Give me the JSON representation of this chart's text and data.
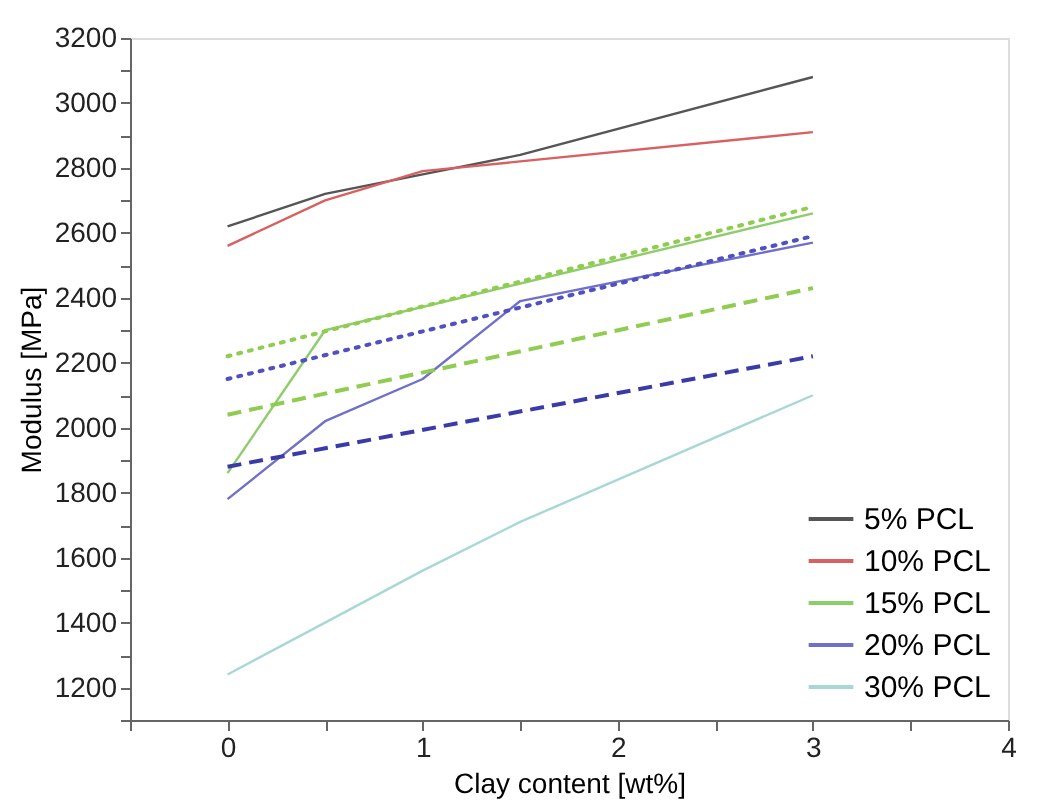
{
  "chart_data": {
    "type": "line",
    "xlabel": "Clay content [wt%]",
    "ylabel": "Modulus [MPa]",
    "xlim": [
      -0.5,
      4
    ],
    "ylim": [
      1100,
      3200
    ],
    "xticks": [
      {
        "value": -0.5,
        "label": null
      },
      0,
      {
        "value": 0.5,
        "label": null
      },
      1,
      {
        "value": 1.5,
        "label": null
      },
      2,
      {
        "value": 2.5,
        "label": null
      },
      3,
      {
        "value": 3.5,
        "label": null
      },
      4
    ],
    "yticks": [
      {
        "value": 1100,
        "label": null
      },
      1200,
      {
        "value": 1300,
        "label": null
      },
      1400,
      {
        "value": 1500,
        "label": null
      },
      1600,
      {
        "value": 1700,
        "label": null
      },
      1800,
      {
        "value": 1900,
        "label": null
      },
      2000,
      {
        "value": 2100,
        "label": null
      },
      2200,
      {
        "value": 2300,
        "label": null
      },
      2400,
      {
        "value": 2500,
        "label": null
      },
      2600,
      {
        "value": 2700,
        "label": null
      },
      2800,
      {
        "value": 2900,
        "label": null
      },
      3000,
      {
        "value": 3100,
        "label": null
      },
      3200
    ],
    "grid": false,
    "legend": "bottom right",
    "marker": "none",
    "series": [
      {
        "name": "5% PCL",
        "color": "#555555",
        "line_style": "solid",
        "x": [
          0,
          0.5,
          1,
          1.5,
          3
        ],
        "values": [
          2620,
          2720,
          2780,
          2840,
          3080
        ]
      },
      {
        "name": "10% PCL",
        "color": "#d96060",
        "line_style": "solid",
        "x": [
          0,
          0.5,
          1,
          1.5,
          3
        ],
        "values": [
          2560,
          2700,
          2790,
          2820,
          2910
        ]
      },
      {
        "name": "15% PCL",
        "color": "#8fcc6a",
        "line_style": "solid",
        "x": [
          0,
          0.5,
          3
        ],
        "values": [
          1860,
          2300,
          2660
        ]
      },
      {
        "name": "20% PCL",
        "color": "#7070c8",
        "line_style": "solid",
        "x": [
          0,
          0.5,
          1,
          1.5,
          3
        ],
        "values": [
          1780,
          2020,
          2150,
          2390,
          2570
        ]
      },
      {
        "name": "30% PCL",
        "color": "#a8d8d4",
        "line_style": "solid",
        "x": [
          0,
          0.5,
          1,
          1.5,
          3
        ],
        "values": [
          1240,
          1400,
          1560,
          1710,
          2100
        ]
      },
      {
        "color": "#8fcc50",
        "line_style": "dotted",
        "x": [
          0,
          3
        ],
        "values": [
          2220,
          2680
        ]
      },
      {
        "color": "#5050c0",
        "line_style": "dotted",
        "x": [
          0,
          3
        ],
        "values": [
          2150,
          2590
        ]
      },
      {
        "color": "#8fcc50",
        "line_style": "dashed",
        "x": [
          0,
          3
        ],
        "values": [
          2040,
          2430
        ]
      },
      {
        "color": "#3a3aa8",
        "line_style": "dashed",
        "x": [
          0,
          3
        ],
        "values": [
          1880,
          2220
        ]
      }
    ]
  }
}
